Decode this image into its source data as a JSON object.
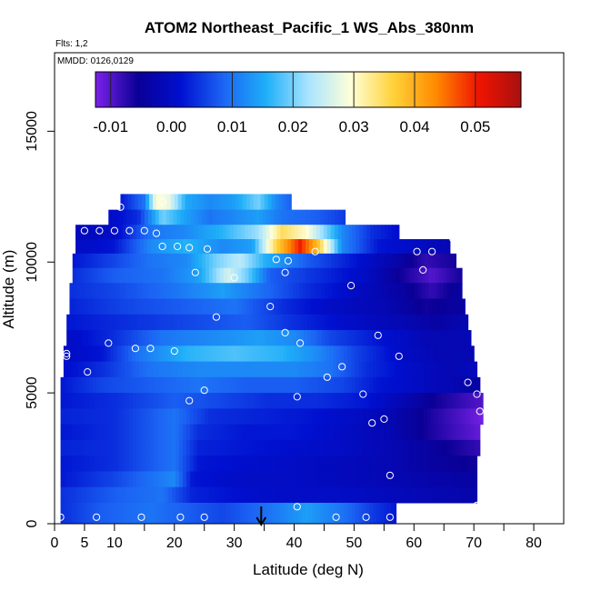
{
  "chart_data": {
    "type": "heatmap",
    "title": "ATOM2 Northeast_Pacific_1 WS_Abs_380nm",
    "flights_note": "Flts: 1,2",
    "date_note": "MMDD: 0126,0129",
    "xlabel": "Latitude (deg N)",
    "ylabel": "Altitude (m)",
    "xlim": [
      0,
      85
    ],
    "ylim": [
      0,
      18000
    ],
    "x_ticks": [
      0,
      5,
      10,
      20,
      30,
      40,
      50,
      60,
      70,
      80
    ],
    "x_minor_ticks": [
      15,
      25,
      35,
      45,
      55,
      65,
      75
    ],
    "y_ticks": [
      0,
      5000,
      10000,
      15000
    ],
    "colorbar": {
      "range": [
        -0.0125,
        0.0575
      ],
      "ticks": [
        -0.01,
        0.0,
        0.01,
        0.02,
        0.03,
        0.04,
        0.05
      ],
      "tick_labels": [
        "-0.01",
        "0.00",
        "0.01",
        "0.02",
        "0.03",
        "0.04",
        "0.05"
      ],
      "stops": [
        "#7B22E8",
        "#0A0096",
        "#0010D0",
        "#1C64F4",
        "#1EAEF8",
        "#A8E4FF",
        "#FFFFD8",
        "#FFD23A",
        "#FF8A00",
        "#F01400",
        "#A81010"
      ]
    },
    "marker_latitude": 34.5,
    "colors": {
      "axis": "#000000",
      "points": "#ffffff",
      "background": "#ffffff"
    },
    "altitude_bands": [
      {
        "alt": 12300,
        "lo": 11,
        "hi": 39.5,
        "profile": [
          [
            11,
            0.002
          ],
          [
            15,
            0.01
          ],
          [
            17,
            0.03
          ],
          [
            19,
            0.028
          ],
          [
            22,
            0.015
          ],
          [
            26,
            0.012
          ],
          [
            30,
            0.014
          ],
          [
            34,
            0.02
          ],
          [
            37,
            0.012
          ],
          [
            39.5,
            0.008
          ]
        ]
      },
      {
        "alt": 11700,
        "lo": 9,
        "hi": 48.5,
        "profile": [
          [
            9,
            0.0
          ],
          [
            14,
            0.004
          ],
          [
            18,
            0.02
          ],
          [
            22,
            0.014
          ],
          [
            26,
            0.01
          ],
          [
            30,
            0.012
          ],
          [
            34,
            0.014
          ],
          [
            38,
            0.01
          ],
          [
            44,
            0.008
          ],
          [
            48.5,
            0.005
          ]
        ]
      },
      {
        "alt": 11150,
        "lo": 3.5,
        "hi": 57.5,
        "profile": [
          [
            3.5,
            -0.001
          ],
          [
            10,
            0.0
          ],
          [
            16,
            0.01
          ],
          [
            22,
            0.012
          ],
          [
            28,
            0.016
          ],
          [
            34,
            0.022
          ],
          [
            38,
            0.035
          ],
          [
            42,
            0.03
          ],
          [
            48,
            0.012
          ],
          [
            53,
            0.004
          ],
          [
            57.5,
            0.001
          ]
        ]
      },
      {
        "alt": 10600,
        "lo": 3.5,
        "hi": 66,
        "profile": [
          [
            3.5,
            0.0
          ],
          [
            10,
            0.002
          ],
          [
            16,
            0.012
          ],
          [
            22,
            0.016
          ],
          [
            28,
            0.012
          ],
          [
            33,
            0.014
          ],
          [
            37,
            0.036
          ],
          [
            41,
            0.05
          ],
          [
            44,
            0.038
          ],
          [
            48,
            0.012
          ],
          [
            54,
            0.002
          ],
          [
            60,
            0.0
          ],
          [
            66,
            -0.002
          ]
        ]
      },
      {
        "alt": 10050,
        "lo": 3,
        "hi": 67,
        "profile": [
          [
            3,
            0.002
          ],
          [
            10,
            0.006
          ],
          [
            16,
            0.01
          ],
          [
            22,
            0.012
          ],
          [
            27,
            0.02
          ],
          [
            31,
            0.024
          ],
          [
            35,
            0.016
          ],
          [
            42,
            0.008
          ],
          [
            50,
            0.002
          ],
          [
            58,
            -0.004
          ],
          [
            62,
            -0.008
          ],
          [
            67,
            -0.006
          ]
        ]
      },
      {
        "alt": 9500,
        "lo": 3,
        "hi": 68,
        "profile": [
          [
            3,
            0.004
          ],
          [
            10,
            0.008
          ],
          [
            18,
            0.01
          ],
          [
            24,
            0.014
          ],
          [
            29,
            0.026
          ],
          [
            32,
            0.02
          ],
          [
            36,
            0.008
          ],
          [
            44,
            0.004
          ],
          [
            52,
            0.0
          ],
          [
            58,
            -0.006
          ],
          [
            63,
            -0.01
          ],
          [
            68,
            -0.006
          ]
        ]
      },
      {
        "alt": 8900,
        "lo": 2.5,
        "hi": 68,
        "profile": [
          [
            2.5,
            0.004
          ],
          [
            10,
            0.006
          ],
          [
            20,
            0.01
          ],
          [
            28,
            0.014
          ],
          [
            34,
            0.01
          ],
          [
            42,
            0.004
          ],
          [
            50,
            0.0
          ],
          [
            58,
            -0.004
          ],
          [
            63,
            -0.008
          ],
          [
            68,
            -0.004
          ]
        ]
      },
      {
        "alt": 8300,
        "lo": 2.5,
        "hi": 68.5,
        "profile": [
          [
            2.5,
            0.003
          ],
          [
            12,
            0.006
          ],
          [
            22,
            0.008
          ],
          [
            30,
            0.01
          ],
          [
            38,
            0.004
          ],
          [
            46,
            0.0
          ],
          [
            55,
            -0.002
          ],
          [
            62,
            -0.006
          ],
          [
            68.5,
            -0.004
          ]
        ]
      },
      {
        "alt": 7700,
        "lo": 2,
        "hi": 69,
        "profile": [
          [
            2,
            0.002
          ],
          [
            12,
            0.004
          ],
          [
            22,
            0.006
          ],
          [
            32,
            0.008
          ],
          [
            40,
            0.004
          ],
          [
            50,
            0.0
          ],
          [
            58,
            -0.002
          ],
          [
            64,
            -0.004
          ],
          [
            69,
            -0.002
          ]
        ]
      },
      {
        "alt": 7100,
        "lo": 2,
        "hi": 69.5,
        "profile": [
          [
            2,
            0.0
          ],
          [
            10,
            0.004
          ],
          [
            18,
            0.01
          ],
          [
            26,
            0.012
          ],
          [
            34,
            0.014
          ],
          [
            40,
            0.012
          ],
          [
            46,
            0.006
          ],
          [
            54,
            0.002
          ],
          [
            62,
            -0.002
          ],
          [
            69.5,
            -0.002
          ]
        ]
      },
      {
        "alt": 6500,
        "lo": 1.5,
        "hi": 70,
        "profile": [
          [
            1.5,
            0.0
          ],
          [
            8,
            0.002
          ],
          [
            14,
            0.01
          ],
          [
            22,
            0.016
          ],
          [
            30,
            0.018
          ],
          [
            38,
            0.016
          ],
          [
            44,
            0.012
          ],
          [
            50,
            0.006
          ],
          [
            58,
            0.0
          ],
          [
            64,
            -0.002
          ],
          [
            70,
            -0.002
          ]
        ]
      },
      {
        "alt": 5900,
        "lo": 1.5,
        "hi": 70.5,
        "profile": [
          [
            1.5,
            0.001
          ],
          [
            8,
            0.004
          ],
          [
            16,
            0.01
          ],
          [
            24,
            0.012
          ],
          [
            32,
            0.012
          ],
          [
            40,
            0.012
          ],
          [
            46,
            0.01
          ],
          [
            52,
            0.004
          ],
          [
            60,
            0.0
          ],
          [
            66,
            -0.002
          ],
          [
            70.5,
            -0.001
          ]
        ]
      },
      {
        "alt": 5300,
        "lo": 1,
        "hi": 71,
        "profile": [
          [
            1,
            0.002
          ],
          [
            8,
            0.006
          ],
          [
            16,
            0.008
          ],
          [
            24,
            0.01
          ],
          [
            32,
            0.008
          ],
          [
            40,
            0.008
          ],
          [
            48,
            0.006
          ],
          [
            54,
            0.002
          ],
          [
            60,
            0.0
          ],
          [
            66,
            -0.002
          ],
          [
            71,
            -0.004
          ]
        ]
      },
      {
        "alt": 4700,
        "lo": 1,
        "hi": 71.5,
        "profile": [
          [
            1,
            0.002
          ],
          [
            10,
            0.004
          ],
          [
            20,
            0.008
          ],
          [
            28,
            0.006
          ],
          [
            36,
            0.004
          ],
          [
            44,
            0.004
          ],
          [
            52,
            0.002
          ],
          [
            58,
            -0.002
          ],
          [
            64,
            -0.006
          ],
          [
            71.5,
            -0.01
          ]
        ]
      },
      {
        "alt": 4100,
        "lo": 1,
        "hi": 71.5,
        "profile": [
          [
            1,
            0.003
          ],
          [
            10,
            0.004
          ],
          [
            20,
            0.01
          ],
          [
            26,
            0.004
          ],
          [
            34,
            0.003
          ],
          [
            42,
            0.002
          ],
          [
            50,
            0.0
          ],
          [
            56,
            -0.002
          ],
          [
            62,
            -0.006
          ],
          [
            71.5,
            -0.012
          ]
        ]
      },
      {
        "alt": 3500,
        "lo": 1,
        "hi": 71,
        "profile": [
          [
            1,
            0.002
          ],
          [
            10,
            0.004
          ],
          [
            20,
            0.01
          ],
          [
            24,
            0.004
          ],
          [
            32,
            0.002
          ],
          [
            40,
            0.002
          ],
          [
            48,
            0.0
          ],
          [
            56,
            -0.002
          ],
          [
            62,
            -0.006
          ],
          [
            71,
            -0.011
          ]
        ]
      },
      {
        "alt": 2900,
        "lo": 1,
        "hi": 71,
        "profile": [
          [
            1,
            0.003
          ],
          [
            10,
            0.004
          ],
          [
            20,
            0.01
          ],
          [
            24,
            0.003
          ],
          [
            32,
            0.002
          ],
          [
            40,
            0.001
          ],
          [
            48,
            0.0
          ],
          [
            56,
            -0.002
          ],
          [
            62,
            -0.004
          ],
          [
            71,
            -0.008
          ]
        ]
      },
      {
        "alt": 2300,
        "lo": 1,
        "hi": 70.5,
        "profile": [
          [
            1,
            0.002
          ],
          [
            10,
            0.004
          ],
          [
            20,
            0.01
          ],
          [
            24,
            0.002
          ],
          [
            32,
            0.001
          ],
          [
            40,
            0.0
          ],
          [
            48,
            -0.001
          ],
          [
            56,
            -0.002
          ],
          [
            62,
            -0.004
          ],
          [
            70.5,
            -0.006
          ]
        ]
      },
      {
        "alt": 1700,
        "lo": 1,
        "hi": 70.5,
        "profile": [
          [
            1,
            0.002
          ],
          [
            10,
            0.006
          ],
          [
            20,
            0.012
          ],
          [
            23,
            0.002
          ],
          [
            32,
            0.0
          ],
          [
            40,
            0.0
          ],
          [
            48,
            -0.001
          ],
          [
            56,
            -0.002
          ],
          [
            62,
            -0.003
          ],
          [
            70.5,
            -0.004
          ]
        ]
      },
      {
        "alt": 1100,
        "lo": 1,
        "hi": 70.5,
        "profile": [
          [
            1,
            0.004
          ],
          [
            10,
            0.008
          ],
          [
            18,
            0.01
          ],
          [
            23,
            0.003
          ],
          [
            32,
            0.001
          ],
          [
            40,
            0.0
          ],
          [
            48,
            0.0
          ],
          [
            56,
            -0.001
          ],
          [
            62,
            -0.002
          ],
          [
            70.5,
            -0.003
          ]
        ]
      },
      {
        "alt": 500,
        "lo": 1,
        "hi": 57,
        "profile": [
          [
            1,
            0.004
          ],
          [
            8,
            0.008
          ],
          [
            16,
            0.01
          ],
          [
            22,
            0.008
          ],
          [
            28,
            0.006
          ],
          [
            36,
            0.01
          ],
          [
            42,
            0.014
          ],
          [
            48,
            0.01
          ],
          [
            52,
            0.006
          ],
          [
            57,
            0.002
          ]
        ]
      }
    ],
    "points": [
      [
        11,
        12100
      ],
      [
        18,
        12300
      ],
      [
        5,
        11200
      ],
      [
        7.5,
        11200
      ],
      [
        10,
        11200
      ],
      [
        12.5,
        11200
      ],
      [
        15,
        11200
      ],
      [
        17,
        11100
      ],
      [
        18,
        10600
      ],
      [
        20.5,
        10600
      ],
      [
        22.5,
        10550
      ],
      [
        25.5,
        10500
      ],
      [
        37,
        10100
      ],
      [
        39,
        10050
      ],
      [
        43.5,
        10400
      ],
      [
        60.5,
        10400
      ],
      [
        63,
        10400
      ],
      [
        66.5,
        10900
      ],
      [
        23.5,
        9600
      ],
      [
        30,
        9400
      ],
      [
        38.5,
        9600
      ],
      [
        49.5,
        9100
      ],
      [
        61.5,
        9700
      ],
      [
        36,
        8300
      ],
      [
        27,
        7900
      ],
      [
        38.5,
        7300
      ],
      [
        54,
        7200
      ],
      [
        9,
        6900
      ],
      [
        13.5,
        6700
      ],
      [
        16,
        6700
      ],
      [
        20,
        6600
      ],
      [
        41,
        6900
      ],
      [
        2,
        6500
      ],
      [
        2,
        6400
      ],
      [
        57.5,
        6400
      ],
      [
        5.5,
        5800
      ],
      [
        45.5,
        5600
      ],
      [
        48,
        6000
      ],
      [
        69,
        5400
      ],
      [
        25,
        5100
      ],
      [
        22.5,
        4700
      ],
      [
        40.5,
        4850
      ],
      [
        51.5,
        4950
      ],
      [
        70.5,
        4950
      ],
      [
        71,
        4300
      ],
      [
        55,
        4000
      ],
      [
        53,
        3850
      ],
      [
        56,
        1850
      ],
      [
        40.5,
        650
      ],
      [
        70.5,
        700
      ],
      [
        1,
        250
      ],
      [
        7,
        250
      ],
      [
        14.5,
        250
      ],
      [
        21,
        250
      ],
      [
        25,
        250
      ],
      [
        47,
        250
      ],
      [
        52,
        250
      ],
      [
        56,
        250
      ]
    ]
  }
}
